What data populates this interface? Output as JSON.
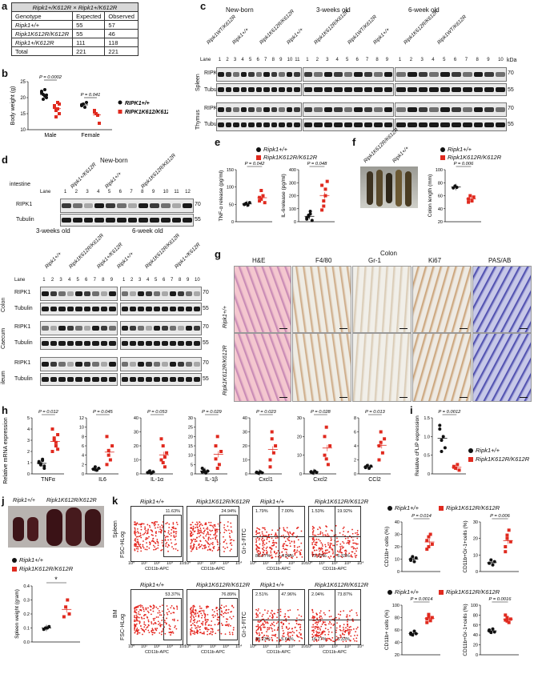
{
  "panel_labels": {
    "a": "a",
    "b": "b",
    "c": "c",
    "d": "d",
    "e": "e",
    "f": "f",
    "g": "g",
    "h": "h",
    "i": "i",
    "j": "j",
    "k": "k"
  },
  "genotypes": {
    "wt": "Ripk1+/+",
    "het": "Ripk1+/K612R",
    "ki": "Ripk1K612R/K612R",
    "WT_upper": "RIPK1+/+",
    "KI_upper": "RIPK1K612/K612R"
  },
  "table_a": {
    "title": "Ripk1+/K612R × Ripk1+/K612R",
    "header": [
      "Genotype",
      "Expected",
      "Observed"
    ],
    "rows": [
      [
        "Ripk1+/+",
        "55",
        "57"
      ],
      [
        "Ripk1K612R/K612R",
        "55",
        "46"
      ],
      [
        "Ripk1+/K612R",
        "111",
        "118"
      ],
      [
        "Total",
        "221",
        "221"
      ]
    ]
  },
  "panel_b": {
    "ylabel": "Body weight (g)",
    "categories": [
      "Male",
      "Female"
    ],
    "p_values": [
      "P = 0.0002",
      "P = 0.041"
    ],
    "legend": [
      "RIPK1+/+",
      "RIPK1K612/K612R"
    ]
  },
  "panel_c": {
    "groups": [
      "New-born",
      "3-weeks old",
      "6-week old"
    ],
    "row_labels": [
      "RIPK1",
      "Tubulin",
      "RIPK1",
      "Tubulin"
    ],
    "tissue_labels": [
      "Spleen",
      "Thymus"
    ],
    "lane_label": "Lane",
    "kda": "kDa",
    "mw": [
      "70",
      "55",
      "70",
      "55"
    ],
    "nb_lanes": [
      "1",
      "2",
      "3",
      "4",
      "5",
      "6",
      "7",
      "8",
      "9",
      "10",
      "11"
    ],
    "w3_lanes": [
      "1",
      "2",
      "3",
      "4",
      "5",
      "6",
      "7",
      "8",
      "9"
    ],
    "w6_lanes": [
      "1",
      "2",
      "3",
      "4",
      "5",
      "6",
      "7",
      "8",
      "9",
      "10"
    ],
    "nb_genotypes": [
      "Ripk1WT/K612R",
      "Ripk1+/+",
      "Ripk1K612R/K612R"
    ],
    "w3_genotypes": [
      "Ripk1+/+",
      "Ripk1K612R/K612R",
      "Ripk1WT/K612R"
    ],
    "w6_genotypes": [
      "Ripk1+/+",
      "Ripk1K612R/K612R",
      "Ripk1WT/K612R"
    ]
  },
  "panel_d": {
    "title": "New-born",
    "intestine": "intestine",
    "lane_label": "Lane",
    "nb_lanes": [
      "1",
      "2",
      "3",
      "4",
      "5",
      "6",
      "7",
      "8",
      "9",
      "10",
      "11",
      "12"
    ],
    "nb_genotypes": [
      "Ripk1+/K612R",
      "Ripk1+/+",
      "Ripk1K612R/K612R"
    ],
    "rows_nb": [
      "RIPK1",
      "Tubulin"
    ],
    "mw_nb": [
      "70",
      "55"
    ],
    "sub_titles": [
      "3-weeks old",
      "6-week old"
    ],
    "w3_lanes": [
      "1",
      "2",
      "3",
      "4",
      "5",
      "6",
      "7",
      "8",
      "9"
    ],
    "w6_lanes": [
      "1",
      "2",
      "3",
      "4",
      "5",
      "6",
      "7",
      "8",
      "9",
      "10"
    ],
    "w_genotypes_left": [
      "Ripk1+/+",
      "Ripk1K612R/K612R",
      "Ripk1+/K612R"
    ],
    "w_genotypes_right": [
      "Ripk1+/+",
      "Ripk1K612R/K612R",
      "Ripk1+/K612R"
    ],
    "rows": [
      "RIPK1",
      "Tubulin",
      "RIPK1",
      "Tubulin",
      "RIPK1",
      "Tubulin"
    ],
    "tissues": [
      "Colon",
      "Caecum",
      "ileum"
    ],
    "mw": [
      "70",
      "55",
      "70",
      "55",
      "70",
      "55"
    ]
  },
  "panel_e": {
    "legend": [
      "Ripk1+/+",
      "Ripk1K612R/K612R"
    ],
    "ylabel1": "TNF-α release (pg/ml)",
    "ylabel2": "IL-6release (pg/ml)",
    "p1": "P = 0.042",
    "p2": "P = 0.048",
    "yticks1": [
      "0",
      "50",
      "100",
      "150"
    ],
    "yticks2": [
      "0",
      "100",
      "200",
      "300",
      "400"
    ]
  },
  "panel_f": {
    "photo_labels": [
      "Ripk1K612R/K612R",
      "Ripk1+/+"
    ],
    "legend": [
      "Ripk1+/+",
      "Ripk1K612R/K612R"
    ],
    "ylabel": "Colon length (mm)",
    "p": "P = 0.006",
    "yticks": [
      "20",
      "40",
      "60",
      "80",
      "100"
    ]
  },
  "panel_g": {
    "title": "Colon",
    "columns": [
      "H&E",
      "F4/80",
      "Gr-1",
      "Ki67",
      "PAS/AB"
    ],
    "rows": [
      "Ripk1+/+",
      "Ripk1K612R/K612R"
    ]
  },
  "panel_h": {
    "ylabel": "Relative mRNA expression",
    "genes": [
      "TNFα",
      "IL6",
      "IL-1α",
      "IL-1β",
      "Cxcl1",
      "Cxcl2",
      "CCl2"
    ],
    "p_values": [
      "P = 0.012",
      "P = 0.045",
      "P = 0.053",
      "P = 0.029",
      "P = 0.023",
      "P = 0.028",
      "P = 0.013"
    ],
    "yticks": [
      [
        "0",
        "1",
        "2",
        "3",
        "4",
        "5"
      ],
      [
        "0",
        "2",
        "4",
        "6",
        "8",
        "10",
        "12"
      ],
      [
        "0",
        "10",
        "20",
        "30",
        "40"
      ],
      [
        "0",
        "5",
        "10",
        "15",
        "20",
        "25",
        "30"
      ],
      [
        "0",
        "10",
        "20",
        "30",
        "40"
      ],
      [
        "0",
        "10",
        "20",
        "30"
      ],
      [
        "0",
        "2",
        "4",
        "6",
        "8"
      ]
    ]
  },
  "panel_i": {
    "ylabel": "Relative cFLIP expression",
    "p": "P = 0.0012",
    "yticks": [
      "0",
      "0.5",
      "1.0",
      "1.5"
    ],
    "legend": [
      "Ripk1+/+",
      "Ripk1K612R/K612R"
    ]
  },
  "panel_j": {
    "photo_labels": [
      "Ripk1+/+",
      "Ripk1K612R/K612R"
    ],
    "legend": [
      "Ripk1+/+",
      "Ripk1K612R/K612R"
    ],
    "ylabel": "Spleen weight (gram)",
    "yticks": [
      "0.0",
      "0.1",
      "0.2",
      "0.3",
      "0.4"
    ],
    "star": "*"
  },
  "panel_k": {
    "row_labels": [
      "Spleen",
      "BM"
    ],
    "headers": [
      "Ripk1+/+",
      "Ripk1K612R/K612R",
      "Ripk1+/+",
      "Ripk1K612R/K612R"
    ],
    "fsc_label": "FSC-HLog",
    "gr1_label": "Gr-1-FITC",
    "cd11b_label": "CD11b-APC",
    "xticks": [
      "10⁰",
      "10¹",
      "10²",
      "10³",
      "10⁴"
    ],
    "spleen_pct": [
      "11.63%",
      "24.94%"
    ],
    "spleen_quads": [
      [
        "1.79%",
        "7.00%",
        "86.27%",
        "4.94%"
      ],
      [
        "1.53%",
        "19.92%",
        "73.22%",
        "5.33%"
      ]
    ],
    "bm_pct": [
      "53.37%",
      "76.89%"
    ],
    "bm_quads": [
      [
        "2.51%",
        "47.96%",
        "43.23%",
        "5.64%"
      ],
      [
        "2.04%",
        "73.87%",
        "16.77%",
        "5.33%"
      ]
    ],
    "legend": [
      "Ripk1+/+",
      "Ripk1K612R/K612R"
    ],
    "charts": [
      {
        "ylabel": "CD11b+ cells (%)",
        "p": "P = 0.014",
        "yticks": [
          "0",
          "10",
          "20",
          "30",
          "40"
        ]
      },
      {
        "ylabel": "CD11b+Gr-1+cells (%)",
        "p": "P = 0.006",
        "yticks": [
          "0",
          "10",
          "20",
          "30"
        ]
      },
      {
        "ylabel": "CD11b+ cells (%)",
        "p": "P = 0.0014",
        "yticks": [
          "20",
          "40",
          "60",
          "80",
          "100"
        ]
      },
      {
        "ylabel": "CD11b+Gr-1+cells (%)",
        "p": "P = 0.0016",
        "yticks": [
          "0",
          "20",
          "40",
          "60",
          "80",
          "100"
        ]
      }
    ]
  },
  "colors": {
    "wt": "#111111",
    "ki": "#e02a1f"
  },
  "chart_data": [
    {
      "type": "scatter",
      "id": "b",
      "categories": [
        "Male",
        "Female"
      ],
      "series": [
        {
          "name": "RIPK1+/+",
          "values": [
            [
              22.0,
              21.0,
              20.5,
              20.0,
              21.5,
              19.5,
              22.5,
              20.8
            ],
            [
              17.5,
              18.0,
              17.0,
              18.5,
              17.8
            ]
          ]
        },
        {
          "name": "RIPK1K612/K612R",
          "values": [
            [
              17.0,
              16.0,
              18.5,
              15.0,
              17.5,
              14.0,
              16.5,
              18.0
            ],
            [
              16.0,
              15.0,
              14.5,
              12.0,
              15.5
            ]
          ]
        }
      ],
      "ylim": [
        10,
        25
      ],
      "yticks": [
        10,
        15,
        20,
        25
      ]
    },
    {
      "type": "scatter",
      "id": "e1",
      "ylim": [
        0,
        150
      ],
      "series": [
        {
          "name": "Ripk1+/+",
          "values": [
            50,
            52,
            48,
            55,
            50,
            53
          ]
        },
        {
          "name": "Ripk1K612R/K612R",
          "values": [
            60,
            90,
            75,
            55,
            70,
            65
          ]
        }
      ]
    },
    {
      "type": "scatter",
      "id": "e2",
      "ylim": [
        0,
        400
      ],
      "series": [
        {
          "name": "Ripk1+/+",
          "values": [
            20,
            50,
            80,
            10,
            30,
            40,
            60
          ]
        },
        {
          "name": "Ripk1K612R/K612R",
          "values": [
            280,
            120,
            200,
            310,
            90,
            160,
            250
          ]
        }
      ]
    },
    {
      "type": "scatter",
      "id": "f",
      "ylim": [
        20,
        100
      ],
      "series": [
        {
          "name": "Ripk1+/+",
          "values": [
            72,
            75,
            73
          ]
        },
        {
          "name": "Ripk1K612R/K612R",
          "values": [
            55,
            60,
            52,
            58,
            50
          ]
        }
      ]
    },
    {
      "type": "scatter",
      "id": "h",
      "categories": [
        "TNFα",
        "IL6",
        "IL-1α",
        "IL-1β",
        "Cxcl1",
        "Cxcl2",
        "CCl2"
      ],
      "series": [
        {
          "name": "Ripk1+/+",
          "values": [
            [
              1.0,
              0.8,
              1.2,
              0.5,
              1.1,
              0.9,
              1.3,
              0.7
            ],
            [
              1.0,
              1.5,
              0.8,
              1.2,
              1.0,
              0.9
            ],
            [
              1.0,
              2.0,
              0.5,
              1.5,
              0.8,
              1.0
            ],
            [
              1.0,
              2.0,
              0.5,
              1.5,
              3.0,
              1.2
            ],
            [
              1.0,
              0.5,
              1.5,
              0.8,
              1.2
            ],
            [
              1.0,
              0.5,
              1.5,
              0.8,
              1.2
            ],
            [
              1.0,
              1.2,
              0.8,
              1.1,
              0.9
            ]
          ]
        },
        {
          "name": "Ripk1K612R/K612R",
          "values": [
            [
              4.0,
              3.0,
              2.5,
              3.5,
              2.0,
              3.2,
              2.8,
              2.2
            ],
            [
              8.0,
              5.0,
              3.0,
              6.0,
              2.0,
              4.0
            ],
            [
              10.0,
              20.0,
              5.0,
              15.0,
              25.0,
              8.0,
              12.0
            ],
            [
              8.0,
              20.0,
              5.0,
              12.0,
              15.0,
              3.0
            ],
            [
              10.0,
              30.0,
              15.0,
              20.0,
              5.0,
              25.0
            ],
            [
              10.0,
              25.0,
              5.0,
              15.0,
              20.0,
              8.0
            ],
            [
              4.0,
              6.0,
              3.0,
              5.0,
              2.0,
              4.5
            ]
          ]
        }
      ]
    },
    {
      "type": "scatter",
      "id": "i",
      "ylim": [
        0,
        1.5
      ],
      "series": [
        {
          "name": "Ripk1+/+",
          "values": [
            1.2,
            0.9,
            1.0,
            0.7,
            1.3,
            0.6
          ]
        },
        {
          "name": "Ripk1K612R/K612R",
          "values": [
            0.2,
            0.15,
            0.25,
            0.1,
            0.18
          ]
        }
      ]
    },
    {
      "type": "scatter",
      "id": "j",
      "ylim": [
        0,
        0.4
      ],
      "series": [
        {
          "name": "Ripk1+/+",
          "values": [
            0.09,
            0.1,
            0.1,
            0.11
          ]
        },
        {
          "name": "Ripk1K612R/K612R",
          "values": [
            0.18,
            0.25,
            0.3,
            0.2
          ]
        }
      ]
    },
    {
      "type": "scatter",
      "id": "k1",
      "ylim": [
        0,
        40
      ],
      "series": [
        {
          "name": "Ripk1+/+",
          "values": [
            10,
            12,
            8,
            11,
            9
          ]
        },
        {
          "name": "Ripk1K612R/K612R",
          "values": [
            25,
            20,
            30,
            22,
            18,
            28
          ]
        }
      ]
    },
    {
      "type": "scatter",
      "id": "k2",
      "ylim": [
        0,
        30
      ],
      "series": [
        {
          "name": "Ripk1+/+",
          "values": [
            5,
            7,
            4,
            6,
            5
          ]
        },
        {
          "name": "Ripk1K612R/K612R",
          "values": [
            15,
            20,
            25,
            18,
            12,
            22
          ]
        }
      ]
    },
    {
      "type": "scatter",
      "id": "k3",
      "ylim": [
        20,
        100
      ],
      "series": [
        {
          "name": "Ripk1+/+",
          "values": [
            55,
            52,
            58,
            54,
            53
          ]
        },
        {
          "name": "Ripk1K612R/K612R",
          "values": [
            78,
            82,
            75,
            80,
            72,
            85
          ]
        }
      ]
    },
    {
      "type": "scatter",
      "id": "k4",
      "ylim": [
        0,
        100
      ],
      "series": [
        {
          "name": "Ripk1+/+",
          "values": [
            48,
            45,
            52,
            46,
            50
          ]
        },
        {
          "name": "Ripk1K612R/K612R",
          "values": [
            70,
            75,
            65,
            72,
            80,
            68
          ]
        }
      ]
    }
  ]
}
